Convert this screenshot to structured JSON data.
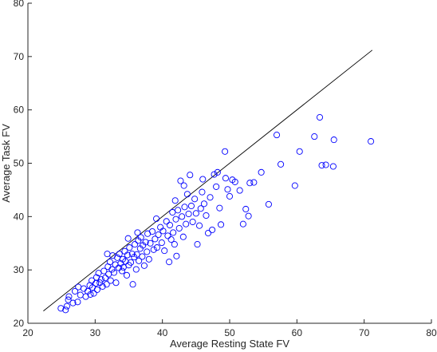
{
  "chart_data": {
    "type": "scatter",
    "title": "",
    "xlabel": "Average Resting State FV",
    "ylabel": "Average Task FV",
    "xlim": [
      20,
      80
    ],
    "ylim": [
      20,
      80
    ],
    "xticks": [
      20,
      30,
      40,
      50,
      60,
      70,
      80
    ],
    "yticks": [
      20,
      30,
      40,
      50,
      60,
      70,
      80
    ],
    "grid": false,
    "marker_color": "#0000ff",
    "line_color": "#000000",
    "reference_line": {
      "x": [
        22.3,
        71.2
      ],
      "y": [
        22.3,
        71.2
      ]
    },
    "series": [
      {
        "marker": "circle",
        "points": [
          [
            25.6,
            22.5
          ],
          [
            25.8,
            23.2
          ],
          [
            26.0,
            24.4
          ],
          [
            26.1,
            25.0
          ],
          [
            26.7,
            23.8
          ],
          [
            27.0,
            26.0
          ],
          [
            27.4,
            24.0
          ],
          [
            27.8,
            25.3
          ],
          [
            28.3,
            26.5
          ],
          [
            28.6,
            25.0
          ],
          [
            28.9,
            26.0
          ],
          [
            29.2,
            27.1
          ],
          [
            29.3,
            25.4
          ],
          [
            29.5,
            28.0
          ],
          [
            29.6,
            26.7
          ],
          [
            29.8,
            25.6
          ],
          [
            30.1,
            27.5
          ],
          [
            30.2,
            28.6
          ],
          [
            30.3,
            26.3
          ],
          [
            30.5,
            29.4
          ],
          [
            30.7,
            27.6
          ],
          [
            30.9,
            28.2
          ],
          [
            31.1,
            26.9
          ],
          [
            31.3,
            29.8
          ],
          [
            31.5,
            28.5
          ],
          [
            31.7,
            27.3
          ],
          [
            31.9,
            30.6
          ],
          [
            32.0,
            29.2
          ],
          [
            32.2,
            31.5
          ],
          [
            32.3,
            28.0
          ],
          [
            32.5,
            30.1
          ],
          [
            32.6,
            32.7
          ],
          [
            32.8,
            29.5
          ],
          [
            33.0,
            31.0
          ],
          [
            33.1,
            27.6
          ],
          [
            33.3,
            32.3
          ],
          [
            33.5,
            30.4
          ],
          [
            33.6,
            33.0
          ],
          [
            33.8,
            31.2
          ],
          [
            34.0,
            29.8
          ],
          [
            34.1,
            32.0
          ],
          [
            34.2,
            30.5
          ],
          [
            34.4,
            33.5
          ],
          [
            34.5,
            31.6
          ],
          [
            34.7,
            29.0
          ],
          [
            34.8,
            32.8
          ],
          [
            35.0,
            30.9
          ],
          [
            35.1,
            34.2
          ],
          [
            35.3,
            31.4
          ],
          [
            35.5,
            33.0
          ],
          [
            35.6,
            27.3
          ],
          [
            35.8,
            32.4
          ],
          [
            35.9,
            34.8
          ],
          [
            36.1,
            30.1
          ],
          [
            36.2,
            32.9
          ],
          [
            36.4,
            35.5
          ],
          [
            36.5,
            31.7
          ],
          [
            36.7,
            34.0
          ],
          [
            36.8,
            36.1
          ],
          [
            37.0,
            32.5
          ],
          [
            37.1,
            34.6
          ],
          [
            37.3,
            30.8
          ],
          [
            37.5,
            35.2
          ],
          [
            37.7,
            33.4
          ],
          [
            37.8,
            36.8
          ],
          [
            38.0,
            32.0
          ],
          [
            38.2,
            35.0
          ],
          [
            38.5,
            37.2
          ],
          [
            38.7,
            33.8
          ],
          [
            38.9,
            35.8
          ],
          [
            39.2,
            34.2
          ],
          [
            39.4,
            36.6
          ],
          [
            39.7,
            38.0
          ],
          [
            39.9,
            35.1
          ],
          [
            40.1,
            37.3
          ],
          [
            40.3,
            33.6
          ],
          [
            40.6,
            39.1
          ],
          [
            40.8,
            36.4
          ],
          [
            41.0,
            31.5
          ],
          [
            41.1,
            38.4
          ],
          [
            41.3,
            35.7
          ],
          [
            41.5,
            40.8
          ],
          [
            41.6,
            37.0
          ],
          [
            41.8,
            34.8
          ],
          [
            42.0,
            39.5
          ],
          [
            42.1,
            32.6
          ],
          [
            42.3,
            41.2
          ],
          [
            42.5,
            37.8
          ],
          [
            42.7,
            46.7
          ],
          [
            42.9,
            40.0
          ],
          [
            43.1,
            36.2
          ],
          [
            43.3,
            41.8
          ],
          [
            43.5,
            38.6
          ],
          [
            43.7,
            44.2
          ],
          [
            43.9,
            40.5
          ],
          [
            44.1,
            47.8
          ],
          [
            44.3,
            42.0
          ],
          [
            44.5,
            39.0
          ],
          [
            44.8,
            43.3
          ],
          [
            45.0,
            40.6
          ],
          [
            45.2,
            34.8
          ],
          [
            45.5,
            38.3
          ],
          [
            45.7,
            41.5
          ],
          [
            45.9,
            44.6
          ],
          [
            46.2,
            42.4
          ],
          [
            46.5,
            40.2
          ],
          [
            46.8,
            36.9
          ],
          [
            47.1,
            43.6
          ],
          [
            47.4,
            37.5
          ],
          [
            47.7,
            47.9
          ],
          [
            48.0,
            45.6
          ],
          [
            48.2,
            48.3
          ],
          [
            48.5,
            41.6
          ],
          [
            48.7,
            38.5
          ],
          [
            49.3,
            52.2
          ],
          [
            49.4,
            47.2
          ],
          [
            49.7,
            45.1
          ],
          [
            50.0,
            43.8
          ],
          [
            50.4,
            46.9
          ],
          [
            50.8,
            46.5
          ],
          [
            51.5,
            44.9
          ],
          [
            52.0,
            38.6
          ],
          [
            52.4,
            41.4
          ],
          [
            52.8,
            40.1
          ],
          [
            53.0,
            46.3
          ],
          [
            53.6,
            46.4
          ],
          [
            54.7,
            48.3
          ],
          [
            55.8,
            42.3
          ],
          [
            57.0,
            55.3
          ],
          [
            57.6,
            49.8
          ],
          [
            59.7,
            45.8
          ],
          [
            60.4,
            52.2
          ],
          [
            62.6,
            55.0
          ],
          [
            63.4,
            58.6
          ],
          [
            63.7,
            49.6
          ],
          [
            64.3,
            49.7
          ],
          [
            65.4,
            49.4
          ],
          [
            65.5,
            54.4
          ],
          [
            71.0,
            54.1
          ],
          [
            24.9,
            22.8
          ],
          [
            27.5,
            26.8
          ],
          [
            31.8,
            33.0
          ],
          [
            34.9,
            35.9
          ],
          [
            36.3,
            37.0
          ],
          [
            39.1,
            39.6
          ],
          [
            41.9,
            43.0
          ],
          [
            43.2,
            45.8
          ],
          [
            46.0,
            47.0
          ]
        ]
      }
    ]
  }
}
